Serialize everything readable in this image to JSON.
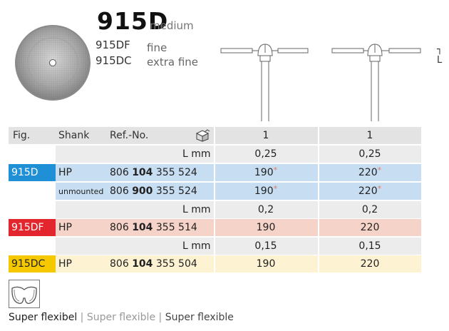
{
  "header": {
    "model": "915D",
    "grit": "medium",
    "variants": [
      {
        "model": "915DF",
        "grit": "fine"
      },
      {
        "model": "915DC",
        "grit": "extra fine"
      }
    ],
    "l_label": "┐ L"
  },
  "table": {
    "headers": {
      "fig": "Fig.",
      "shank": "Shank",
      "ref": "Ref.-No."
    },
    "pack_icon": "package-box-icon",
    "pack_values": [
      "1",
      "1"
    ],
    "rows": [
      {
        "type": "lmm",
        "label": "L mm",
        "v1": "0,25",
        "v2": "0,25"
      },
      {
        "type": "product",
        "code": "915D",
        "shank": "HP",
        "ref_pre": "806",
        "ref_bold": "104",
        "ref_post": "355 524",
        "v1": "190",
        "v1_star": "*",
        "v2": "220",
        "v2_star": "*"
      },
      {
        "type": "product",
        "code": "",
        "shank": "unmounted",
        "ref_pre": "806",
        "ref_bold": "900",
        "ref_post": "355 524",
        "v1": "190",
        "v1_star": "*",
        "v2": "220",
        "v2_star": "*"
      },
      {
        "type": "lmm",
        "label": "L mm",
        "v1": "0,2",
        "v2": "0,2"
      },
      {
        "type": "product",
        "code": "915DF",
        "shank": "HP",
        "ref_pre": "806",
        "ref_bold": "104",
        "ref_post": "355 514",
        "v1": "190",
        "v2": "220"
      },
      {
        "type": "lmm",
        "label": "L mm",
        "v1": "0,15",
        "v2": "0,15"
      },
      {
        "type": "product",
        "code": "915DC",
        "shank": "HP",
        "ref_pre": "806",
        "ref_bold": "104",
        "ref_post": "355 504",
        "v1": "190",
        "v2": "220"
      }
    ]
  },
  "colors": {
    "header_bg": "#e3e3e3",
    "lmm_bg": "#ececec",
    "blue_row": "#c7ddf1",
    "blue_code": "#1f8fd6",
    "red_row": "#f6d3c8",
    "red_code": "#e3262e",
    "yellow_row": "#fdf3d3",
    "yellow_code": "#f6c800"
  },
  "footer": {
    "icon": "flexible-disc-icon",
    "label1": "Super flexibel",
    "sep": "|",
    "label2": "Super flexible",
    "label3": "Super flexible"
  }
}
